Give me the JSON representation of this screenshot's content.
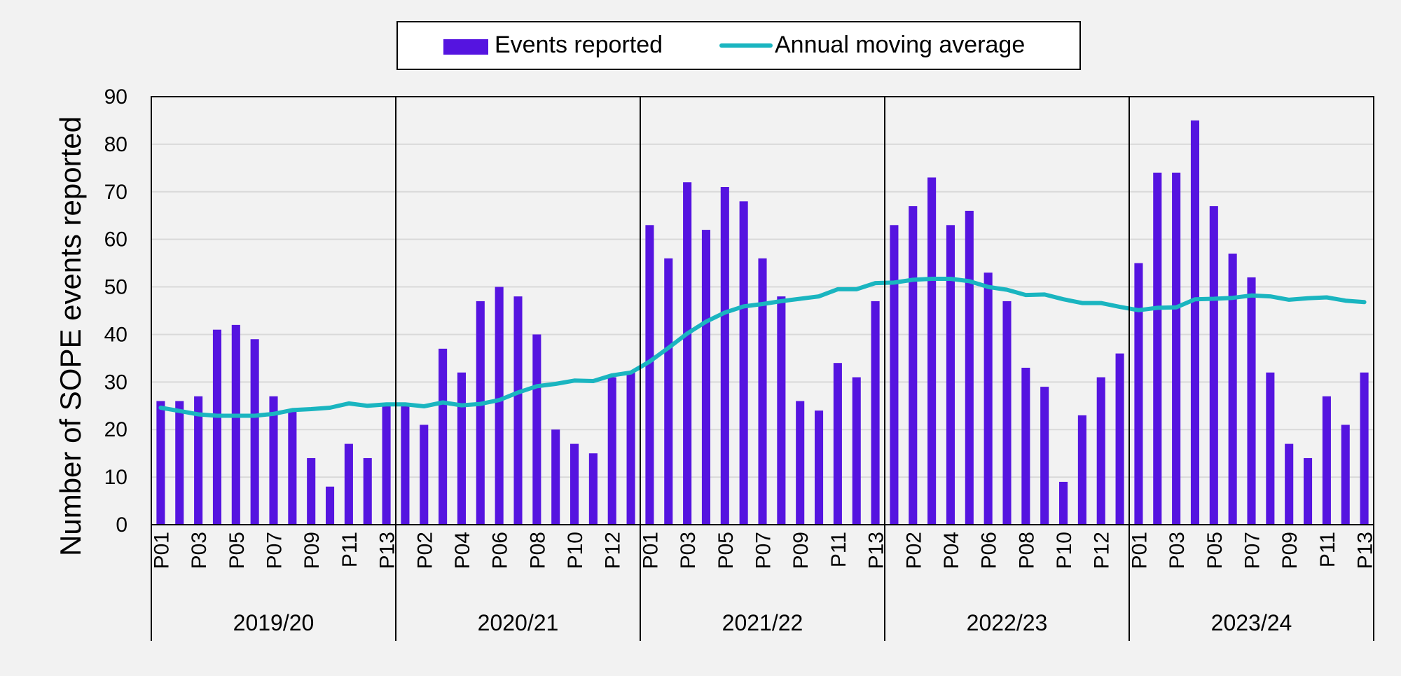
{
  "chart_data": {
    "type": "bar",
    "title": "",
    "xlabel": "",
    "ylabel": "Number of SOPE events reported",
    "ylim": [
      0,
      90
    ],
    "yticks": [
      0,
      10,
      20,
      30,
      40,
      50,
      60,
      70,
      80,
      90
    ],
    "grid": true,
    "legend_position": "top-center",
    "colors": {
      "bars": "#5514e0",
      "line": "#1ab5c0"
    },
    "groups": [
      {
        "label": "2019/20",
        "periods": [
          "P01",
          "P02",
          "P03",
          "P04",
          "P05",
          "P06",
          "P07",
          "P08",
          "P09",
          "P10",
          "P11",
          "P12",
          "P13"
        ]
      },
      {
        "label": "2020/21",
        "periods": [
          "P01",
          "P02",
          "P03",
          "P04",
          "P05",
          "P06",
          "P07",
          "P08",
          "P09",
          "P10",
          "P11",
          "P12",
          "P13"
        ]
      },
      {
        "label": "2021/22",
        "periods": [
          "P01",
          "P02",
          "P03",
          "P04",
          "P05",
          "P06",
          "P07",
          "P08",
          "P09",
          "P10",
          "P11",
          "P12",
          "P13"
        ]
      },
      {
        "label": "2022/23",
        "periods": [
          "P01",
          "P02",
          "P03",
          "P04",
          "P05",
          "P06",
          "P07",
          "P08",
          "P09",
          "P10",
          "P11",
          "P12",
          "P13"
        ]
      },
      {
        "label": "2023/24",
        "periods": [
          "P01",
          "P02",
          "P03",
          "P04",
          "P05",
          "P06",
          "P07",
          "P08",
          "P09",
          "P10",
          "P11",
          "P12",
          "P13"
        ]
      }
    ],
    "x_tick_labels": [
      [
        "P01",
        "P03",
        "P05",
        "P07",
        "P09",
        "P11",
        "P13"
      ],
      [
        "P02",
        "P04",
        "P06",
        "P08",
        "P10",
        "P12"
      ],
      [
        "P01",
        "P03",
        "P05",
        "P07",
        "P09",
        "P11",
        "P13"
      ],
      [
        "P02",
        "P04",
        "P06",
        "P08",
        "P10",
        "P12"
      ],
      [
        "P01",
        "P03",
        "P05",
        "P07",
        "P09",
        "P11",
        "P13"
      ]
    ],
    "series": [
      {
        "name": "Events reported",
        "type": "bar",
        "values": [
          26,
          26,
          27,
          41,
          42,
          39,
          27,
          24,
          14,
          8,
          17,
          14,
          25,
          25,
          21,
          37,
          32,
          47,
          50,
          48,
          40,
          20,
          17,
          15,
          31,
          32,
          63,
          56,
          72,
          62,
          71,
          68,
          56,
          48,
          26,
          24,
          34,
          31,
          47,
          63,
          67,
          73,
          63,
          66,
          53,
          47,
          33,
          29,
          9,
          23,
          31,
          36,
          55,
          74,
          74,
          85,
          67,
          57,
          52,
          32,
          17,
          14,
          27,
          21,
          32
        ]
      },
      {
        "name": "Annual moving average",
        "type": "line",
        "values": [
          24.6,
          23.9,
          23.2,
          22.9,
          22.9,
          22.9,
          23.3,
          24.1,
          24.3,
          24.6,
          25.5,
          25.0,
          25.3,
          25.3,
          24.9,
          25.7,
          25.1,
          25.4,
          26.2,
          27.8,
          29.1,
          29.6,
          30.3,
          30.2,
          31.4,
          32.0,
          34.3,
          37.2,
          40.2,
          42.7,
          44.6,
          45.9,
          46.4,
          47.0,
          47.5,
          48.0,
          49.5,
          49.5,
          50.8,
          50.9,
          51.5,
          51.7,
          51.7,
          51.2,
          50.0,
          49.4,
          48.3,
          48.4,
          47.4,
          46.6,
          46.6,
          45.8,
          45.1,
          45.6,
          45.7,
          47.4,
          47.5,
          47.7,
          48.2,
          48.0,
          47.3,
          47.6,
          47.8,
          47.1,
          46.8
        ]
      }
    ]
  }
}
